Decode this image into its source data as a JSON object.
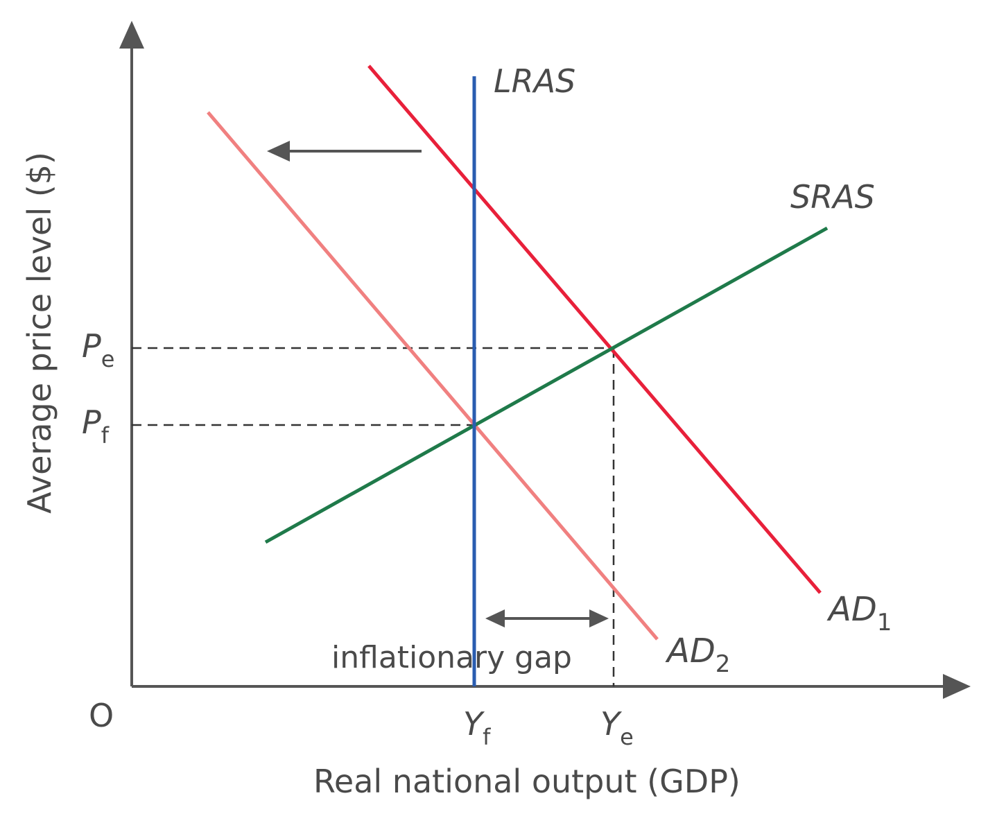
{
  "axes": {
    "y_label": "Average price level ($)",
    "x_label": "Real national output (GDP)",
    "origin": "O"
  },
  "curves": {
    "lras": "LRAS",
    "sras": "SRAS",
    "ad1": "AD",
    "ad1_sub": "1",
    "ad2": "AD",
    "ad2_sub": "2"
  },
  "price_labels": {
    "pe": "P",
    "pe_sub": "e",
    "pf": "P",
    "pf_sub": "f"
  },
  "output_labels": {
    "yf": "Y",
    "yf_sub": "f",
    "ye": "Y",
    "ye_sub": "e"
  },
  "annotation": {
    "gap": "inflationary gap"
  },
  "colors": {
    "lras": "#2a5db0",
    "sras": "#1f7a4a",
    "ad1": "#e8203a",
    "ad2": "#f08080",
    "axis": "#555555",
    "text": "#4a4a4a"
  }
}
